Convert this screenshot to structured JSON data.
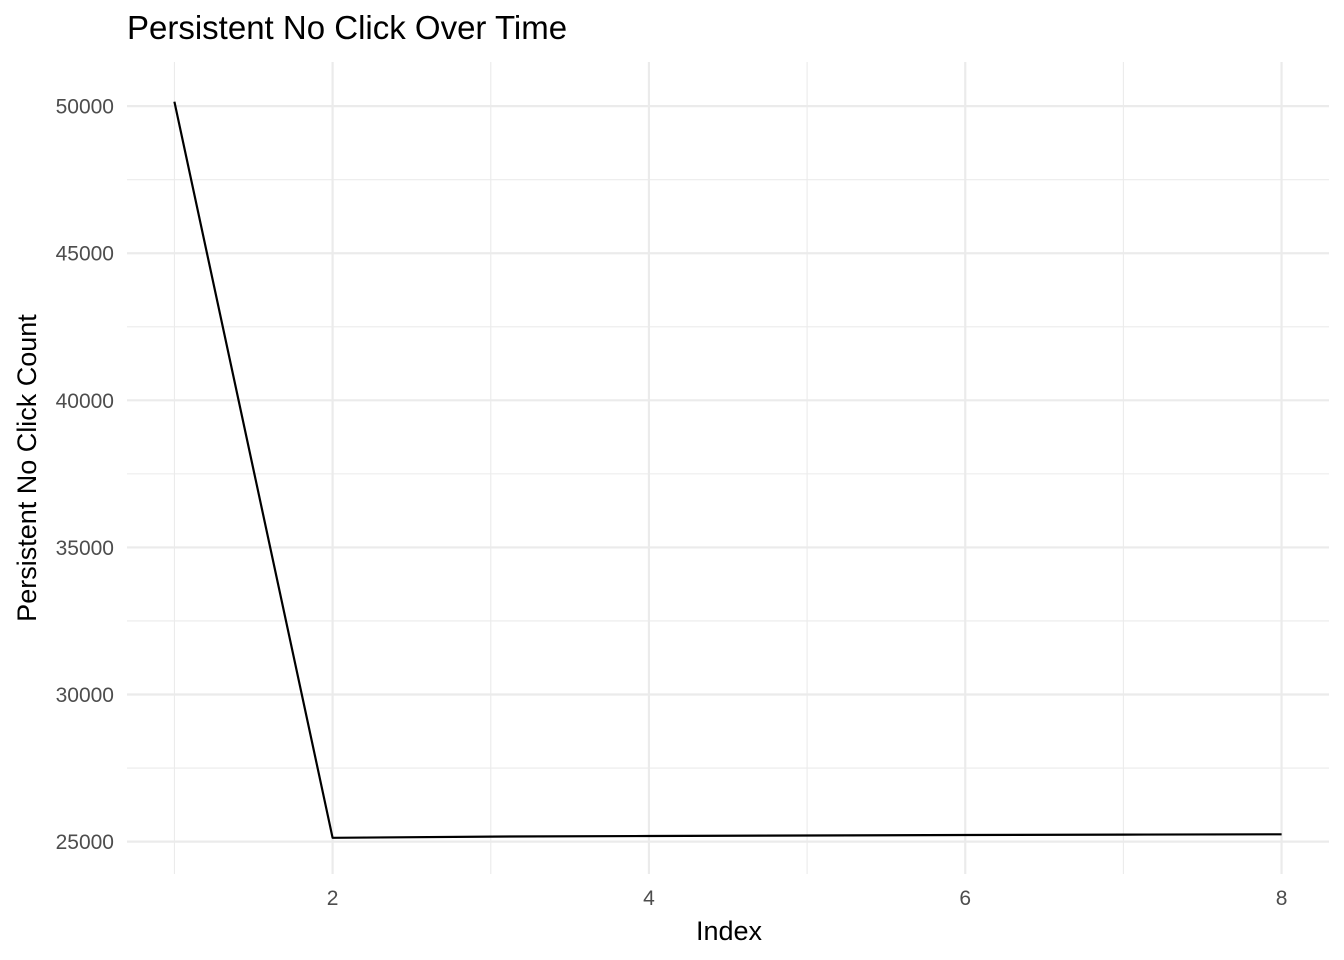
{
  "chart_data": {
    "type": "line",
    "title": "Persistent No Click Over Time",
    "xlabel": "Index",
    "ylabel": "Persistent No Click Count",
    "x": [
      1,
      2,
      3,
      4,
      5,
      6,
      7,
      8
    ],
    "series": [
      {
        "values": [
          50150,
          25130,
          25170,
          25190,
          25210,
          25225,
          25240,
          25250
        ],
        "color": "#000000"
      }
    ],
    "xlim": [
      0.7,
      8.3
    ],
    "ylim": [
      23900,
      51500
    ],
    "x_ticks": [
      2,
      4,
      6,
      8
    ],
    "x_tick_labels": [
      "2",
      "4",
      "6",
      "8"
    ],
    "x_minor_ticks": [
      1,
      3,
      5,
      7
    ],
    "y_ticks": [
      25000,
      30000,
      35000,
      40000,
      45000,
      50000
    ],
    "y_tick_labels": [
      "25000",
      "30000",
      "35000",
      "40000",
      "45000",
      "50000"
    ],
    "y_minor_ticks": [
      27500,
      32500,
      37500,
      42500,
      47500
    ],
    "grid": true,
    "legend": "none",
    "colors": {
      "background": "#ffffff",
      "grid": "#ebebeb",
      "tick_text": "#4d4d4d",
      "text": "#000000",
      "line": "#000000"
    }
  }
}
